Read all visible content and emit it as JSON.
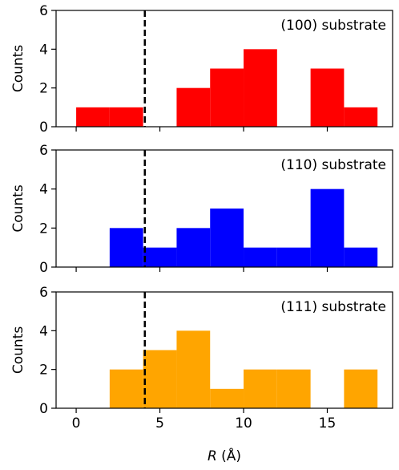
{
  "chart_data": [
    {
      "type": "bar",
      "annotation": "(100) substrate",
      "color": "#ff0000",
      "bin_edges": [
        0,
        2,
        4,
        6,
        8,
        10,
        12,
        14,
        16,
        18
      ],
      "values": [
        1,
        1,
        0,
        2,
        3,
        4,
        0,
        3,
        1
      ],
      "ylabel": "Counts",
      "ylim": [
        0,
        6
      ],
      "yticks": [
        "0",
        "2",
        "4",
        "6"
      ],
      "vline_x": 4.1
    },
    {
      "type": "bar",
      "annotation": "(110) substrate",
      "color": "#0000ff",
      "bin_edges": [
        0,
        2,
        4,
        6,
        8,
        10,
        12,
        14,
        16,
        18
      ],
      "values": [
        0,
        2,
        1,
        2,
        3,
        1,
        1,
        4,
        1
      ],
      "ylabel": "Counts",
      "ylim": [
        0,
        6
      ],
      "yticks": [
        "0",
        "2",
        "4",
        "6"
      ],
      "vline_x": 4.1
    },
    {
      "type": "bar",
      "annotation": "(111) substrate",
      "color": "#ffa500",
      "bin_edges": [
        0,
        2,
        4,
        6,
        8,
        10,
        12,
        14,
        16,
        18
      ],
      "values": [
        0,
        2,
        3,
        4,
        1,
        2,
        2,
        0,
        2
      ],
      "ylabel": "Counts",
      "ylim": [
        0,
        6
      ],
      "yticks": [
        "0",
        "2",
        "4",
        "6"
      ],
      "vline_x": 4.1
    }
  ],
  "shared_x": {
    "label_italic": "R",
    "label_unit": " (Å)",
    "xlim": [
      -1.2,
      18.9
    ],
    "ticks": [
      0,
      5,
      10,
      15
    ],
    "tick_labels": [
      "0",
      "5",
      "10",
      "15"
    ]
  }
}
